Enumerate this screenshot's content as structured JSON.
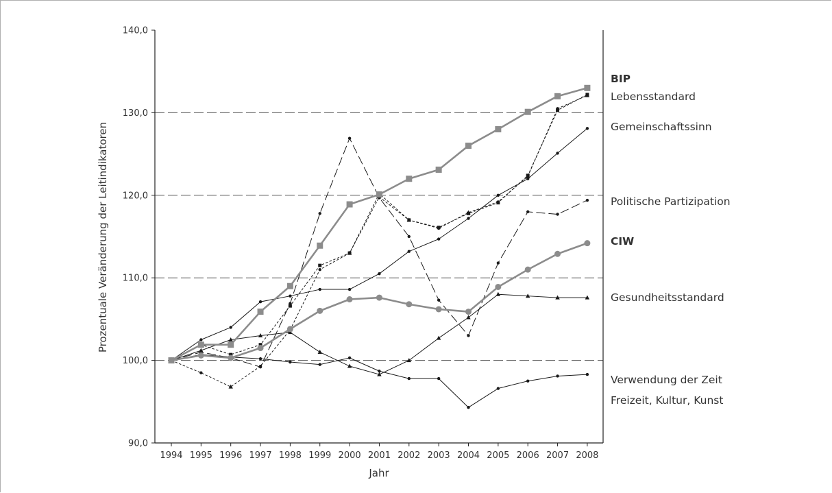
{
  "chart_data": {
    "type": "line",
    "title": "",
    "xlabel": "Jahr",
    "ylabel": "Prozentuale Veränderung der Leitindikatoren",
    "ylim": [
      90,
      140
    ],
    "y_ticks": [
      "90,0",
      "100,0",
      "110,0",
      "120,0",
      "130,0",
      "140,0"
    ],
    "x": [
      "1994",
      "1995",
      "1996",
      "1997",
      "1998",
      "1999",
      "2000",
      "2001",
      "2002",
      "2003",
      "2004",
      "2005",
      "2006",
      "2007",
      "2008"
    ],
    "grid": "horizontal dashed at 100, 110, 120, 130",
    "legend_placement": "right",
    "series": [
      {
        "name": "BIP",
        "bold": true,
        "style": "thick-gray",
        "color": "#8c8c8c",
        "marker": "square",
        "values": [
          100.0,
          101.9,
          101.9,
          105.9,
          109.0,
          113.9,
          118.9,
          120.1,
          122.0,
          123.1,
          126.0,
          128.0,
          130.1,
          132.0,
          133.0
        ]
      },
      {
        "name": "Lebensstandard",
        "bold": false,
        "style": "short-dash",
        "color": "#1a1a1a",
        "marker": "square-small",
        "values": [
          100.0,
          101.9,
          100.7,
          101.9,
          106.6,
          111.5,
          113.0,
          120.2,
          117.0,
          116.1,
          117.8,
          119.1,
          122.4,
          130.3,
          132.2
        ]
      },
      {
        "name": "Gemeinschaftssinn",
        "bold": false,
        "style": "solid-thin",
        "color": "#1a1a1a",
        "marker": "dot",
        "values": [
          100.0,
          102.5,
          104.0,
          107.1,
          107.8,
          108.6,
          108.6,
          110.5,
          113.2,
          114.7,
          117.2,
          120.0,
          122.0,
          125.1,
          128.1
        ]
      },
      {
        "name": "Politische Partizipation",
        "bold": false,
        "style": "long-dash",
        "color": "#1a1a1a",
        "marker": "dot",
        "values": [
          100.0,
          101.0,
          100.3,
          99.2,
          106.9,
          117.8,
          126.9,
          119.7,
          115.0,
          107.3,
          103.0,
          111.8,
          118.0,
          117.7,
          119.4
        ]
      },
      {
        "name": "CIW",
        "bold": true,
        "style": "thick-gray",
        "color": "#8c8c8c",
        "marker": "circle",
        "values": [
          100.0,
          100.6,
          100.3,
          101.5,
          103.8,
          106.0,
          107.4,
          107.6,
          106.8,
          106.2,
          105.9,
          108.9,
          111.0,
          112.9,
          114.2
        ]
      },
      {
        "name": "Gesundheitsstandard",
        "bold": false,
        "style": "solid-thin",
        "color": "#1a1a1a",
        "marker": "triangle",
        "values": [
          100.0,
          101.2,
          102.5,
          103.0,
          103.4,
          101.0,
          99.3,
          98.3,
          100.0,
          102.7,
          105.2,
          108.0,
          107.8,
          107.6,
          107.6
        ]
      },
      {
        "name": "Verwendung der Zeit",
        "bold": false,
        "style": "solid-thin",
        "color": "#1a1a1a",
        "marker": "dot",
        "values": [
          100.0,
          100.7,
          100.4,
          100.2,
          99.8,
          99.5,
          100.3,
          98.7,
          97.8,
          97.8,
          94.3,
          96.6,
          97.5,
          98.1,
          98.3
        ]
      },
      {
        "name": "Freizeit, Kultur, Kunst",
        "bold": false,
        "style": "short-dash",
        "color": "#1a1a1a",
        "marker": "dot-triangle",
        "values": [
          100.0,
          98.5,
          96.8,
          99.3,
          103.7,
          111.0,
          113.0,
          119.8,
          117.0,
          116.0,
          117.9,
          119.2,
          122.3,
          130.5,
          132.1
        ]
      }
    ]
  }
}
